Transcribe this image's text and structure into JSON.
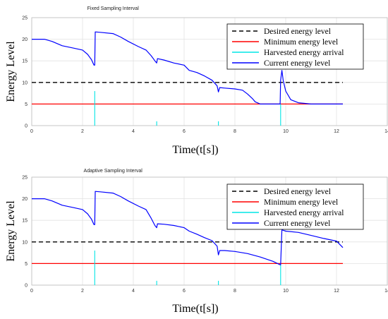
{
  "chart_data": [
    {
      "type": "line",
      "title": "Fixed Sampling Interval",
      "xlabel": "Time(t[s])",
      "ylabel": "Energy Level",
      "xlim": [
        0,
        14
      ],
      "ylim": [
        0,
        25
      ],
      "xticks": [
        0,
        2,
        4,
        6,
        8,
        10,
        12,
        14
      ],
      "yticks": [
        0,
        5,
        10,
        15,
        20,
        25
      ],
      "grid": true,
      "legend_position": "top-right",
      "series": [
        {
          "name": "Desired energy level",
          "color": "#000000",
          "dash": true,
          "x": [
            0,
            12.25
          ],
          "y": [
            10,
            10
          ]
        },
        {
          "name": "Minimum energy level",
          "color": "#ff0000",
          "x": [
            0,
            12.25
          ],
          "y": [
            5,
            5
          ]
        },
        {
          "name": "Harvested energy arrival",
          "color": "#00e5e5",
          "impulses": true,
          "x": [
            2.48,
            4.92,
            7.35,
            9.8
          ],
          "y": [
            8,
            1,
            1,
            5
          ]
        },
        {
          "name": "Current energy level",
          "color": "#0000ff",
          "x": [
            0,
            0.5,
            0.8,
            1.2,
            1.6,
            2.0,
            2.2,
            2.35,
            2.45,
            2.48,
            2.5,
            2.7,
            3.2,
            3.5,
            3.8,
            4.2,
            4.5,
            4.7,
            4.85,
            4.92,
            4.95,
            5.2,
            5.6,
            6.0,
            6.2,
            6.5,
            6.8,
            7.1,
            7.3,
            7.35,
            7.4,
            7.6,
            8.0,
            8.3,
            8.5,
            8.7,
            8.8,
            9.0,
            9.5,
            9.78,
            9.8,
            9.85,
            9.9,
            10.0,
            10.2,
            10.5,
            11.0,
            12.25
          ],
          "y": [
            20,
            20,
            19.5,
            18.5,
            18,
            17.5,
            16.5,
            15.3,
            14,
            14,
            21.7,
            21.6,
            21.3,
            20.5,
            19.5,
            18.3,
            17.5,
            16.2,
            15,
            14.5,
            15.5,
            15.2,
            14.5,
            14,
            12.8,
            12.3,
            11.5,
            10.5,
            9.2,
            7.8,
            8.8,
            8.7,
            8.5,
            8.2,
            7.3,
            6.2,
            5.5,
            5.0,
            5.0,
            5.0,
            10.5,
            12.8,
            10.5,
            8.0,
            6.0,
            5.3,
            5.0,
            5.0
          ]
        }
      ]
    },
    {
      "type": "line",
      "title": "Adaptive Sampling Interval",
      "xlabel": "Time(t[s])",
      "ylabel": "Energy Level",
      "xlim": [
        0,
        14
      ],
      "ylim": [
        0,
        25
      ],
      "xticks": [
        0,
        2,
        4,
        6,
        8,
        10,
        12,
        14
      ],
      "yticks": [
        0,
        5,
        10,
        15,
        20,
        25
      ],
      "grid": true,
      "legend_position": "top-right",
      "series": [
        {
          "name": "Desired energy level",
          "color": "#000000",
          "dash": true,
          "x": [
            0,
            12.25
          ],
          "y": [
            10,
            10
          ]
        },
        {
          "name": "Minimum energy level",
          "color": "#ff0000",
          "x": [
            0,
            12.25
          ],
          "y": [
            5,
            5
          ]
        },
        {
          "name": "Harvested energy arrival",
          "color": "#00e5e5",
          "impulses": true,
          "x": [
            2.48,
            4.92,
            7.35,
            9.8
          ],
          "y": [
            8,
            1,
            1,
            5
          ]
        },
        {
          "name": "Current energy level",
          "color": "#0000ff",
          "x": [
            0,
            0.5,
            0.8,
            1.2,
            1.6,
            2.0,
            2.2,
            2.35,
            2.45,
            2.48,
            2.5,
            2.7,
            3.2,
            3.5,
            3.8,
            4.2,
            4.5,
            4.7,
            4.85,
            4.92,
            4.95,
            5.2,
            5.6,
            6.0,
            6.2,
            6.5,
            6.8,
            7.1,
            7.3,
            7.35,
            7.4,
            7.6,
            8.0,
            8.5,
            9.0,
            9.5,
            9.78,
            9.8,
            9.85,
            10.0,
            10.5,
            11.0,
            11.5,
            12.0,
            12.25
          ],
          "y": [
            20,
            20,
            19.5,
            18.5,
            18,
            17.5,
            16.5,
            15.3,
            14,
            14,
            21.7,
            21.6,
            21.3,
            20.5,
            19.5,
            18.3,
            17.5,
            15.5,
            13.8,
            13.3,
            14.2,
            14.1,
            13.8,
            13.3,
            12.5,
            11.8,
            11.0,
            10.3,
            9.0,
            7.0,
            8.0,
            8.0,
            7.8,
            7.3,
            6.5,
            5.5,
            4.7,
            4.7,
            12.8,
            12.5,
            12.2,
            11.5,
            10.8,
            10.2,
            8.7
          ]
        }
      ]
    }
  ]
}
